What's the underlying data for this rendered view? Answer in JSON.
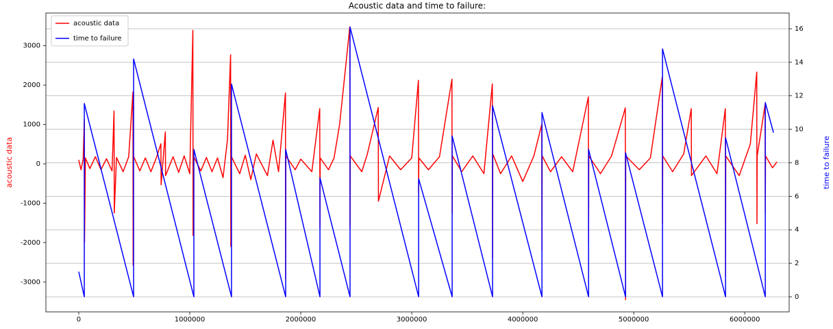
{
  "chart_data": {
    "type": "line",
    "title": "Acoustic data and time to failure:",
    "ylabel": "acoustic data",
    "y2label": "time to failure",
    "xlim": [
      -296000,
      6400000
    ],
    "xticks": [
      0,
      1000000,
      2000000,
      3000000,
      4000000,
      5000000,
      6000000
    ],
    "ylim": [
      -3760,
      3830
    ],
    "yticks": [
      -3000,
      -2000,
      -1000,
      0,
      1000,
      2000,
      3000
    ],
    "y2lim": [
      -0.9,
      16.94
    ],
    "y2ticks": [
      0,
      2,
      4,
      6,
      8,
      10,
      12,
      14,
      16
    ],
    "grid": "y2",
    "legend": "upper left",
    "series": [
      {
        "name": "acoustic data",
        "color": "#ff0000",
        "x": [
          0,
          20000,
          40000,
          50000,
          52000,
          60000,
          100000,
          150000,
          200000,
          250000,
          300000,
          318000,
          320000,
          340000,
          400000,
          450000,
          488000,
          490000,
          492000,
          550000,
          600000,
          650000,
          700000,
          740000,
          742000,
          780000,
          782000,
          850000,
          900000,
          950000,
          1000000,
          1028000,
          1030000,
          1032000,
          1100000,
          1150000,
          1200000,
          1250000,
          1300000,
          1340000,
          1368000,
          1370000,
          1372000,
          1450000,
          1500000,
          1550000,
          1600000,
          1700000,
          1750000,
          1800000,
          1862000,
          1864000,
          1866000,
          1950000,
          2000000,
          2100000,
          2171000,
          2173000,
          2175000,
          2250000,
          2300000,
          2350000,
          2442000,
          2444000,
          2446000,
          2550000,
          2600000,
          2698000,
          2700000,
          2800000,
          2900000,
          3000000,
          3060000,
          3062000,
          3064000,
          3150000,
          3250000,
          3362000,
          3364000,
          3366000,
          3450000,
          3550000,
          3650000,
          3726000,
          3728000,
          3730000,
          3800000,
          3900000,
          4000000,
          4100000,
          4171000,
          4173000,
          4175000,
          4250000,
          4350000,
          4450000,
          4591000,
          4593000,
          4595000,
          4700000,
          4800000,
          4924000,
          4926000,
          4928000,
          5050000,
          5150000,
          5257000,
          5259000,
          5261000,
          5350000,
          5450000,
          5518000,
          5520000,
          5650000,
          5750000,
          5825000,
          5827000,
          5829000,
          5950000,
          6050000,
          6108000,
          6110000,
          6112000,
          6183000,
          6185000,
          6187000,
          6250000,
          6290000
        ],
        "values": [
          100,
          -150,
          120,
          1130,
          -2000,
          150,
          -120,
          180,
          -150,
          130,
          -180,
          1340,
          -1250,
          160,
          -200,
          180,
          1820,
          -2580,
          200,
          -180,
          150,
          -200,
          160,
          510,
          -530,
          810,
          -300,
          180,
          -220,
          200,
          -250,
          3390,
          -1820,
          200,
          -180,
          160,
          -200,
          150,
          -350,
          620,
          2770,
          -2100,
          200,
          -250,
          220,
          -400,
          250,
          -300,
          600,
          -200,
          1800,
          -2930,
          200,
          -150,
          120,
          -200,
          1400,
          -1640,
          150,
          -150,
          150,
          1000,
          3480,
          -1640,
          200,
          -200,
          250,
          1430,
          -950,
          200,
          -150,
          150,
          2120,
          -730,
          150,
          -150,
          180,
          2150,
          -1270,
          200,
          -200,
          200,
          -250,
          2030,
          -2400,
          250,
          -250,
          200,
          -450,
          200,
          1000,
          -2200,
          200,
          -200,
          180,
          -200,
          1700,
          -2000,
          200,
          -250,
          200,
          1420,
          -3450,
          200,
          -150,
          150,
          2200,
          -1520,
          200,
          -200,
          250,
          1400,
          -300,
          200,
          -250,
          1400,
          -2850,
          200,
          -300,
          500,
          2330,
          -1520,
          200,
          1500,
          -1270,
          200,
          -100,
          50
        ]
      },
      {
        "name": "time to failure",
        "color": "#0000ff",
        "axis": "y2",
        "x": [
          0,
          50000,
          50000,
          494000,
          494000,
          1037000,
          1037000,
          1376000,
          1376000,
          1864000,
          1864000,
          2173000,
          2173000,
          2444000,
          2444000,
          3062000,
          3062000,
          3364000,
          3364000,
          3728000,
          3728000,
          4173000,
          4173000,
          4593000,
          4593000,
          4926000,
          4926000,
          5259000,
          5259000,
          5827000,
          5827000,
          6185000,
          6185000,
          6259000
        ],
        "values": [
          1.5,
          0,
          11.54,
          0,
          14.2,
          0,
          8.8,
          0,
          12.7,
          0,
          8.8,
          0,
          7.1,
          0,
          16.1,
          0,
          7.05,
          0,
          9.6,
          0,
          11.4,
          0,
          11.0,
          0,
          8.8,
          0,
          8.6,
          0,
          14.8,
          0,
          9.5,
          0,
          11.6,
          9.8
        ]
      }
    ]
  }
}
